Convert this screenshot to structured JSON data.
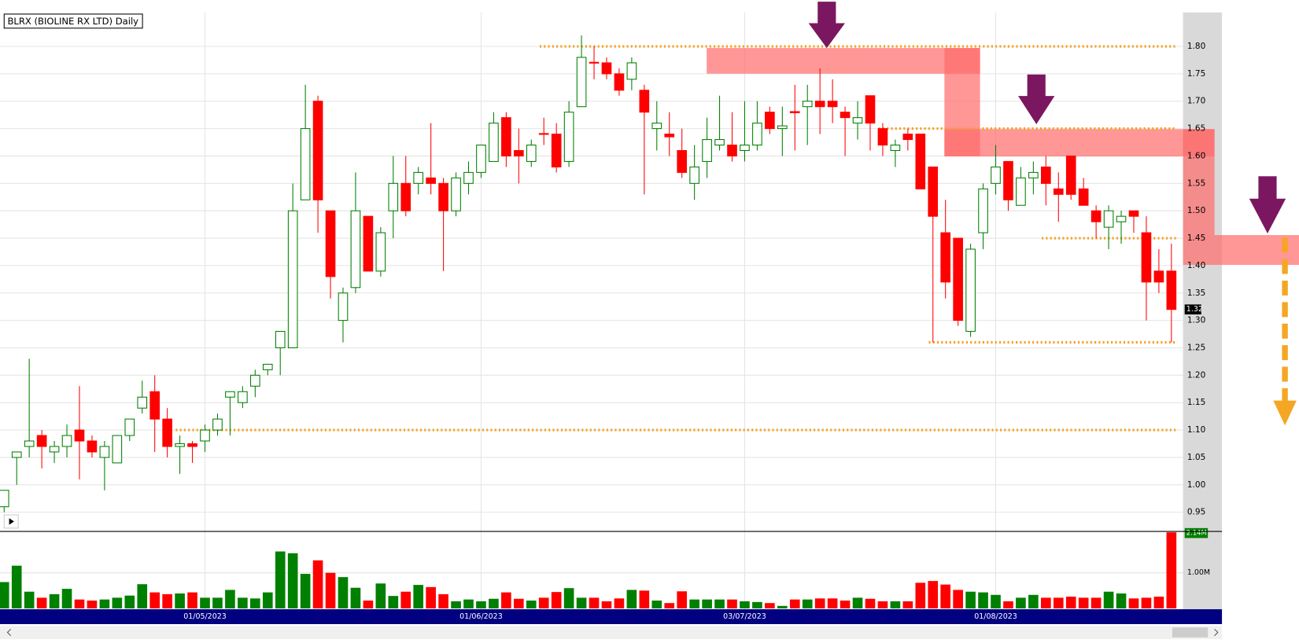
{
  "chart_data": {
    "type": "candlestick",
    "title": "BLRX (BIOLINE RX LTD) Daily",
    "categories": [
      null,
      null,
      null,
      null,
      null,
      null,
      null,
      null,
      null,
      null,
      null,
      null,
      null,
      null,
      null,
      null,
      "01/05/2023",
      null,
      null,
      null,
      null,
      null,
      null,
      null,
      null,
      null,
      null,
      null,
      null,
      null,
      null,
      null,
      null,
      null,
      null,
      null,
      null,
      null,
      "01/06/2023",
      null,
      null,
      null,
      null,
      null,
      null,
      null,
      null,
      null,
      null,
      null,
      null,
      null,
      null,
      null,
      null,
      null,
      null,
      null,
      null,
      "03/07/2023",
      null,
      null,
      null,
      null,
      null,
      null,
      null,
      null,
      null,
      null,
      null,
      null,
      null,
      null,
      null,
      null,
      null,
      null,
      null,
      "01/08/2023",
      null,
      null,
      null,
      null,
      null,
      null,
      null,
      null,
      null,
      null,
      null,
      null,
      null,
      null
    ],
    "open": [
      0.96,
      1.05,
      1.07,
      1.09,
      1.06,
      1.07,
      1.1,
      1.08,
      1.05,
      1.04,
      1.09,
      1.14,
      1.17,
      1.12,
      1.07,
      1.075,
      1.08,
      1.1,
      1.16,
      1.15,
      1.18,
      1.21,
      1.25,
      1.25,
      1.52,
      1.7,
      1.5,
      1.3,
      1.36,
      1.49,
      1.39,
      1.5,
      1.55,
      1.55,
      1.56,
      1.55,
      1.5,
      1.55,
      1.57,
      1.59,
      1.67,
      1.61,
      1.59,
      1.641,
      1.64,
      1.59,
      1.69,
      1.771,
      1.77,
      1.75,
      1.74,
      1.72,
      1.65,
      1.64,
      1.61,
      1.55,
      1.59,
      1.62,
      1.62,
      1.61,
      1.62,
      1.68,
      1.65,
      1.681,
      1.69,
      1.7,
      1.7,
      1.68,
      1.66,
      1.71,
      1.65,
      1.61,
      1.64,
      1.64,
      1.58,
      1.46,
      1.45,
      1.28,
      1.46,
      1.55,
      1.59,
      1.51,
      1.56,
      1.58,
      1.54,
      1.6,
      1.54,
      1.5,
      1.47,
      1.48,
      1.5,
      1.46,
      1.39,
      1.39
    ],
    "high": [
      0.99,
      1.06,
      1.23,
      1.1,
      1.08,
      1.11,
      1.18,
      1.09,
      1.08,
      1.09,
      1.12,
      1.19,
      1.2,
      1.14,
      1.09,
      1.08,
      1.11,
      1.13,
      1.17,
      1.18,
      1.21,
      1.22,
      1.28,
      1.55,
      1.73,
      1.71,
      1.5,
      1.36,
      1.57,
      1.49,
      1.47,
      1.6,
      1.6,
      1.58,
      1.66,
      1.56,
      1.57,
      1.59,
      1.62,
      1.68,
      1.68,
      1.65,
      1.63,
      1.67,
      1.66,
      1.7,
      1.82,
      1.8,
      1.78,
      1.76,
      1.78,
      1.73,
      1.7,
      1.68,
      1.65,
      1.62,
      1.67,
      1.71,
      1.68,
      1.7,
      1.7,
      1.69,
      1.69,
      1.73,
      1.73,
      1.76,
      1.74,
      1.69,
      1.7,
      1.71,
      1.66,
      1.63,
      1.65,
      1.64,
      1.58,
      1.52,
      1.45,
      1.44,
      1.55,
      1.62,
      1.59,
      1.58,
      1.59,
      1.6,
      1.57,
      1.6,
      1.56,
      1.51,
      1.51,
      1.5,
      1.5,
      1.49,
      1.43,
      1.44
    ],
    "low": [
      0.95,
      1.0,
      1.05,
      1.03,
      1.04,
      1.05,
      1.01,
      1.05,
      0.99,
      1.04,
      1.08,
      1.13,
      1.06,
      1.05,
      1.02,
      1.04,
      1.06,
      1.09,
      1.09,
      1.14,
      1.16,
      1.2,
      1.2,
      1.25,
      1.52,
      1.46,
      1.34,
      1.26,
      1.35,
      1.39,
      1.38,
      1.45,
      1.49,
      1.53,
      1.53,
      1.39,
      1.49,
      1.53,
      1.56,
      1.59,
      1.58,
      1.55,
      1.58,
      1.62,
      1.57,
      1.58,
      1.69,
      1.74,
      1.74,
      1.71,
      1.72,
      1.53,
      1.61,
      1.6,
      1.56,
      1.52,
      1.56,
      1.61,
      1.59,
      1.59,
      1.61,
      1.64,
      1.6,
      1.61,
      1.62,
      1.64,
      1.66,
      1.6,
      1.63,
      1.61,
      1.6,
      1.58,
      1.61,
      1.54,
      1.26,
      1.34,
      1.29,
      1.27,
      1.43,
      1.53,
      1.5,
      1.51,
      1.53,
      1.51,
      1.48,
      1.52,
      1.51,
      1.45,
      1.43,
      1.44,
      1.46,
      1.3,
      1.35,
      1.26
    ],
    "close": [
      0.99,
      1.06,
      1.08,
      1.07,
      1.07,
      1.09,
      1.08,
      1.06,
      1.07,
      1.09,
      1.12,
      1.16,
      1.12,
      1.07,
      1.075,
      1.07,
      1.1,
      1.12,
      1.17,
      1.17,
      1.2,
      1.22,
      1.28,
      1.5,
      1.65,
      1.52,
      1.38,
      1.35,
      1.5,
      1.39,
      1.46,
      1.55,
      1.5,
      1.57,
      1.55,
      1.5,
      1.56,
      1.57,
      1.62,
      1.66,
      1.6,
      1.6,
      1.62,
      1.64,
      1.58,
      1.68,
      1.78,
      1.77,
      1.75,
      1.72,
      1.77,
      1.68,
      1.66,
      1.635,
      1.57,
      1.58,
      1.63,
      1.63,
      1.6,
      1.62,
      1.66,
      1.65,
      1.655,
      1.679,
      1.7,
      1.69,
      1.69,
      1.67,
      1.67,
      1.66,
      1.62,
      1.62,
      1.63,
      1.54,
      1.49,
      1.37,
      1.3,
      1.43,
      1.54,
      1.58,
      1.52,
      1.56,
      1.57,
      1.55,
      1.53,
      1.53,
      1.51,
      1.48,
      1.5,
      1.49,
      1.49,
      1.37,
      1.37,
      1.32
    ],
    "up_color": "#008000",
    "down_color": "#ff0000",
    "ylim": [
      0.918,
      1.862
    ],
    "yticks": [
      0.95,
      {
        "value": 1,
        "label": "1.00"
      },
      1.05,
      {
        "value": 1.1,
        "label": "1.10"
      },
      1.15,
      {
        "value": 1.2,
        "label": "1.20"
      },
      1.25,
      {
        "value": 1.3,
        "label": "1.30"
      },
      1.35,
      {
        "value": 1.4,
        "label": "1.40"
      },
      1.45,
      {
        "value": 1.5,
        "label": "1.50"
      },
      1.55,
      {
        "value": 1.6,
        "label": "1.60"
      },
      1.65,
      {
        "value": 1.7,
        "label": "1.70"
      },
      1.75,
      {
        "value": 1.8,
        "label": "1.80"
      }
    ],
    "last_price": 1.32,
    "grid": true,
    "level_color": "#f5a020",
    "levels": [
      {
        "value": 1.8,
        "from": 43
      },
      {
        "value": 1.65,
        "from": 70
      },
      {
        "value": 1.45,
        "from": 83
      },
      {
        "value": 1.26,
        "from": 74
      },
      {
        "value": 1.1,
        "from": 14
      }
    ],
    "volume": {
      "values": [
        0.74,
        1.2,
        0.47,
        0.3,
        0.4,
        0.55,
        0.25,
        0.22,
        0.25,
        0.3,
        0.36,
        0.68,
        0.45,
        0.4,
        0.42,
        0.45,
        0.3,
        0.3,
        0.52,
        0.3,
        0.28,
        0.45,
        1.6,
        1.55,
        0.97,
        1.35,
        1.0,
        0.88,
        0.58,
        0.22,
        0.7,
        0.35,
        0.47,
        0.66,
        0.6,
        0.4,
        0.2,
        0.25,
        0.2,
        0.27,
        0.45,
        0.27,
        0.22,
        0.3,
        0.46,
        0.57,
        0.3,
        0.3,
        0.2,
        0.28,
        0.52,
        0.5,
        0.22,
        0.15,
        0.48,
        0.25,
        0.25,
        0.25,
        0.25,
        0.2,
        0.18,
        0.15,
        0.07,
        0.25,
        0.25,
        0.28,
        0.28,
        0.22,
        0.3,
        0.27,
        0.2,
        0.2,
        0.2,
        0.72,
        0.77,
        0.67,
        0.52,
        0.47,
        0.45,
        0.38,
        0.2,
        0.3,
        0.38,
        0.3,
        0.3,
        0.33,
        0.3,
        0.3,
        0.47,
        0.42,
        0.28,
        0.3,
        0.33,
        2.14
      ],
      "ylim": [
        0,
        2.14
      ],
      "yticks": [
        {
          "value": 1,
          "label": "1.00M"
        }
      ],
      "last": {
        "value": 2.14,
        "label": "2.14M"
      }
    }
  }
}
